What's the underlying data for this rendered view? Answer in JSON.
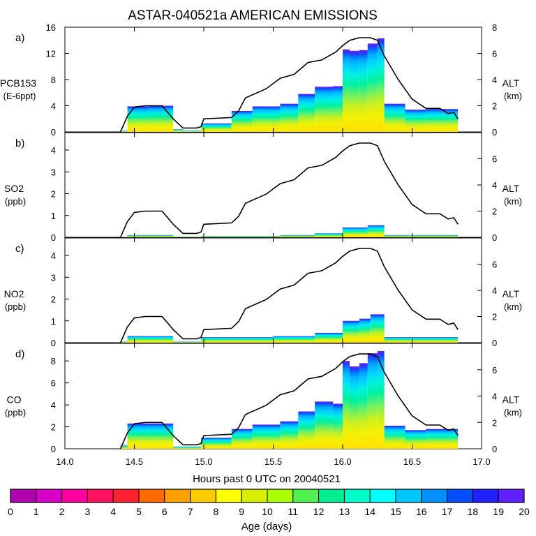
{
  "chart_data": {
    "type": "area",
    "title": "ASTAR-040521a AMERICAN EMISSIONS",
    "xlabel": "Hours past 0 UTC on 20040521",
    "xlim": [
      14.0,
      17.0
    ],
    "x_ticks": [
      "14.0",
      "14.5",
      "15.0",
      "15.5",
      "16.0",
      "16.5",
      "17.0"
    ],
    "right_axis": {
      "label": "ALT",
      "unit": "(km)",
      "ylim": [
        0,
        8
      ]
    },
    "altitude_track": {
      "x": [
        14.4,
        14.45,
        14.5,
        14.58,
        14.7,
        14.78,
        14.85,
        14.95,
        14.98,
        15.0,
        15.2,
        15.25,
        15.3,
        15.45,
        15.55,
        15.65,
        15.75,
        15.85,
        15.95,
        16.0,
        16.05,
        16.12,
        16.2,
        16.25,
        16.3,
        16.4,
        16.5,
        16.6,
        16.7,
        16.76,
        16.8,
        16.83
      ],
      "alt": [
        0.0,
        1.2,
        1.9,
        2.0,
        2.0,
        1.0,
        0.3,
        0.3,
        0.4,
        1.0,
        1.1,
        1.6,
        2.6,
        3.3,
        4.1,
        4.4,
        5.3,
        5.5,
        6.1,
        6.6,
        7.0,
        7.2,
        7.2,
        7.0,
        5.8,
        4.0,
        2.5,
        1.8,
        1.8,
        1.4,
        1.5,
        1.0
      ]
    },
    "age_colorbar": {
      "label": "Age (days)",
      "ticks": [
        "0",
        "1",
        "2",
        "3",
        "4",
        "5",
        "6",
        "7",
        "8",
        "9",
        "10",
        "11",
        "12",
        "13",
        "14",
        "15",
        "16",
        "17",
        "18",
        "19",
        "20"
      ],
      "colors": [
        "#800080",
        "#b000b0",
        "#d800c8",
        "#ff00a0",
        "#ff1060",
        "#ff2030",
        "#ff6a00",
        "#ffa000",
        "#ffcc00",
        "#ffff00",
        "#d8f000",
        "#a8ff00",
        "#50f050",
        "#00f090",
        "#00ffc8",
        "#00ffff",
        "#00c8ff",
        "#0090ff",
        "#0050ff",
        "#2020ff",
        "#6020ff"
      ]
    },
    "panels": [
      {
        "id": "a",
        "label": "a)",
        "species": "PCB153",
        "unit": "(E-6ppt)",
        "ylim": [
          0,
          16
        ],
        "y_ticks": [
          0,
          4,
          8,
          12,
          16
        ],
        "alt_ticks": [
          0,
          2,
          4,
          6,
          8
        ],
        "segments": [
          [
            14.4,
            14.45,
            0.2
          ],
          [
            14.45,
            14.6,
            3.9
          ],
          [
            14.6,
            14.78,
            4.0
          ],
          [
            14.78,
            14.85,
            0.4
          ],
          [
            14.85,
            14.98,
            0.2
          ],
          [
            14.98,
            15.2,
            1.3
          ],
          [
            15.2,
            15.35,
            3.2
          ],
          [
            15.35,
            15.55,
            3.9
          ],
          [
            15.55,
            15.68,
            4.3
          ],
          [
            15.68,
            15.8,
            5.8
          ],
          [
            15.8,
            15.93,
            6.9
          ],
          [
            15.93,
            16.0,
            7.0
          ],
          [
            16.0,
            16.05,
            12.6
          ],
          [
            16.05,
            16.12,
            12.4
          ],
          [
            16.12,
            16.18,
            12.5
          ],
          [
            16.18,
            16.25,
            13.5
          ],
          [
            16.25,
            16.3,
            14.3
          ],
          [
            16.3,
            16.45,
            4.3
          ],
          [
            16.45,
            16.6,
            3.4
          ],
          [
            16.6,
            16.83,
            3.5
          ]
        ]
      },
      {
        "id": "b",
        "label": "b)",
        "species": "SO2",
        "unit": "(ppb)",
        "ylim": [
          0,
          4.8
        ],
        "y_ticks": [
          0,
          1,
          2,
          3,
          4
        ],
        "alt_ticks": [
          0,
          2,
          4,
          6
        ],
        "segments": [
          [
            14.4,
            14.45,
            0.02
          ],
          [
            14.45,
            14.78,
            0.1
          ],
          [
            14.78,
            14.98,
            0.03
          ],
          [
            14.98,
            15.55,
            0.06
          ],
          [
            15.55,
            15.8,
            0.1
          ],
          [
            15.8,
            16.0,
            0.18
          ],
          [
            16.0,
            16.18,
            0.45
          ],
          [
            16.18,
            16.3,
            0.55
          ],
          [
            16.3,
            16.83,
            0.1
          ]
        ]
      },
      {
        "id": "c",
        "label": "c)",
        "species": "NO2",
        "unit": "(ppb)",
        "ylim": [
          0,
          4.8
        ],
        "y_ticks": [
          0,
          1,
          2,
          3,
          4
        ],
        "alt_ticks": [
          0,
          2,
          4,
          6
        ],
        "segments": [
          [
            14.4,
            14.45,
            0.05
          ],
          [
            14.45,
            14.78,
            0.3
          ],
          [
            14.78,
            14.98,
            0.05
          ],
          [
            14.98,
            15.5,
            0.25
          ],
          [
            15.5,
            15.8,
            0.3
          ],
          [
            15.8,
            16.0,
            0.45
          ],
          [
            16.0,
            16.12,
            1.0
          ],
          [
            16.12,
            16.2,
            1.1
          ],
          [
            16.2,
            16.3,
            1.3
          ],
          [
            16.3,
            16.83,
            0.25
          ]
        ]
      },
      {
        "id": "d",
        "label": "d)",
        "species": "CO",
        "unit": "(ppb)",
        "ylim": [
          0,
          9.6
        ],
        "y_ticks": [
          0,
          2,
          4,
          6,
          8
        ],
        "alt_ticks": [
          0,
          2,
          4,
          6
        ],
        "segments": [
          [
            14.4,
            14.45,
            0.3
          ],
          [
            14.45,
            14.6,
            2.3
          ],
          [
            14.6,
            14.78,
            2.3
          ],
          [
            14.78,
            14.98,
            0.2
          ],
          [
            14.98,
            15.2,
            1.0
          ],
          [
            15.2,
            15.35,
            1.8
          ],
          [
            15.35,
            15.55,
            2.2
          ],
          [
            15.55,
            15.68,
            2.5
          ],
          [
            15.68,
            15.8,
            3.4
          ],
          [
            15.8,
            15.93,
            4.3
          ],
          [
            15.93,
            16.0,
            4.1
          ],
          [
            16.0,
            16.05,
            8.0
          ],
          [
            16.05,
            16.12,
            7.5
          ],
          [
            16.12,
            16.18,
            7.8
          ],
          [
            16.18,
            16.25,
            8.7
          ],
          [
            16.25,
            16.3,
            8.9
          ],
          [
            16.3,
            16.45,
            2.1
          ],
          [
            16.45,
            16.6,
            1.7
          ],
          [
            16.6,
            16.83,
            1.8
          ]
        ]
      }
    ]
  }
}
